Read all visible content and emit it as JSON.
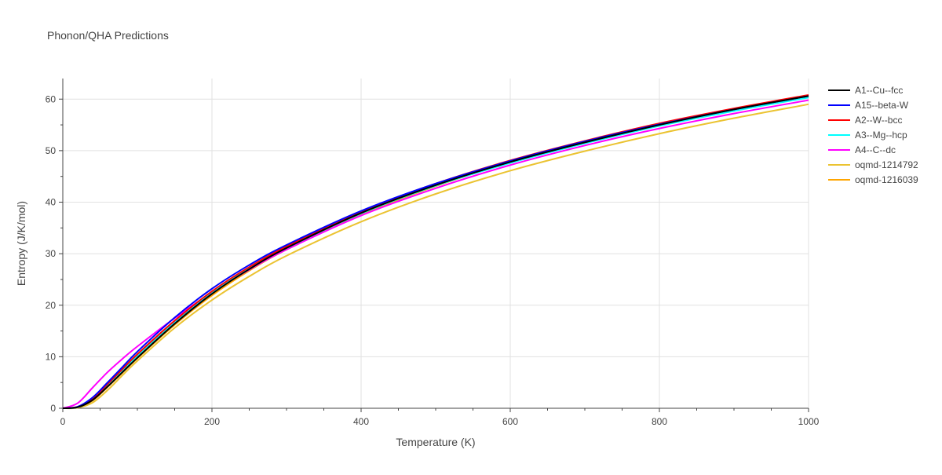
{
  "chart_data": {
    "type": "line",
    "title": "Phonon/QHA Predictions",
    "xlabel": "Temperature (K)",
    "ylabel": "Entropy (J/K/mol)",
    "xlim": [
      0,
      1000
    ],
    "ylim": [
      0,
      64
    ],
    "x_ticks": [
      0,
      200,
      400,
      600,
      800,
      1000
    ],
    "y_ticks": [
      0,
      10,
      20,
      30,
      40,
      50,
      60
    ],
    "grid": true,
    "legend_position": "right",
    "x": [
      0,
      20,
      40,
      60,
      80,
      100,
      150,
      200,
      250,
      300,
      400,
      500,
      600,
      700,
      800,
      900,
      1000
    ],
    "series": [
      {
        "name": "A1--Cu--fcc",
        "color": "#000000",
        "values": [
          0,
          0.2,
          1.6,
          4.2,
          7.0,
          9.8,
          16.4,
          22.2,
          27.0,
          31.1,
          37.9,
          43.3,
          47.8,
          51.6,
          55.0,
          58.0,
          60.6
        ]
      },
      {
        "name": "A15--beta-W",
        "color": "#0000ff",
        "values": [
          0,
          0.3,
          2.1,
          5.0,
          8.0,
          11.0,
          17.6,
          23.2,
          27.8,
          31.7,
          38.3,
          43.6,
          48.0,
          51.8,
          55.1,
          58.0,
          60.6
        ]
      },
      {
        "name": "A2--W--bcc",
        "color": "#ff0000",
        "values": [
          0,
          0.3,
          1.9,
          4.7,
          7.6,
          10.5,
          17.0,
          22.7,
          27.4,
          31.4,
          38.2,
          43.6,
          48.1,
          51.9,
          55.3,
          58.2,
          60.8
        ]
      },
      {
        "name": "A3--Mg--hcp",
        "color": "#00ffff",
        "values": [
          0,
          0.2,
          1.7,
          4.4,
          7.3,
          10.1,
          16.7,
          22.4,
          27.1,
          31.1,
          37.8,
          43.2,
          47.6,
          51.4,
          54.8,
          57.7,
          60.3
        ]
      },
      {
        "name": "A4--C--dc",
        "color": "#ff00ff",
        "values": [
          0,
          1.0,
          4.0,
          7.0,
          9.6,
          12.0,
          17.5,
          22.5,
          26.9,
          30.8,
          37.4,
          42.7,
          47.2,
          51.0,
          54.3,
          57.2,
          59.8
        ]
      },
      {
        "name": "oqmd-1214792",
        "color": "#ebc331",
        "values": [
          0,
          0.1,
          1.1,
          3.5,
          6.4,
          9.2,
          15.6,
          21.0,
          25.6,
          29.6,
          36.2,
          41.6,
          46.1,
          49.9,
          53.3,
          56.3,
          59.0
        ]
      },
      {
        "name": "oqmd-1216039",
        "color": "#ffa500",
        "values": [
          0,
          0.2,
          1.5,
          4.1,
          6.9,
          9.7,
          16.2,
          21.9,
          26.7,
          30.8,
          37.6,
          43.1,
          47.7,
          51.5,
          54.9,
          57.9,
          60.5
        ]
      }
    ]
  }
}
